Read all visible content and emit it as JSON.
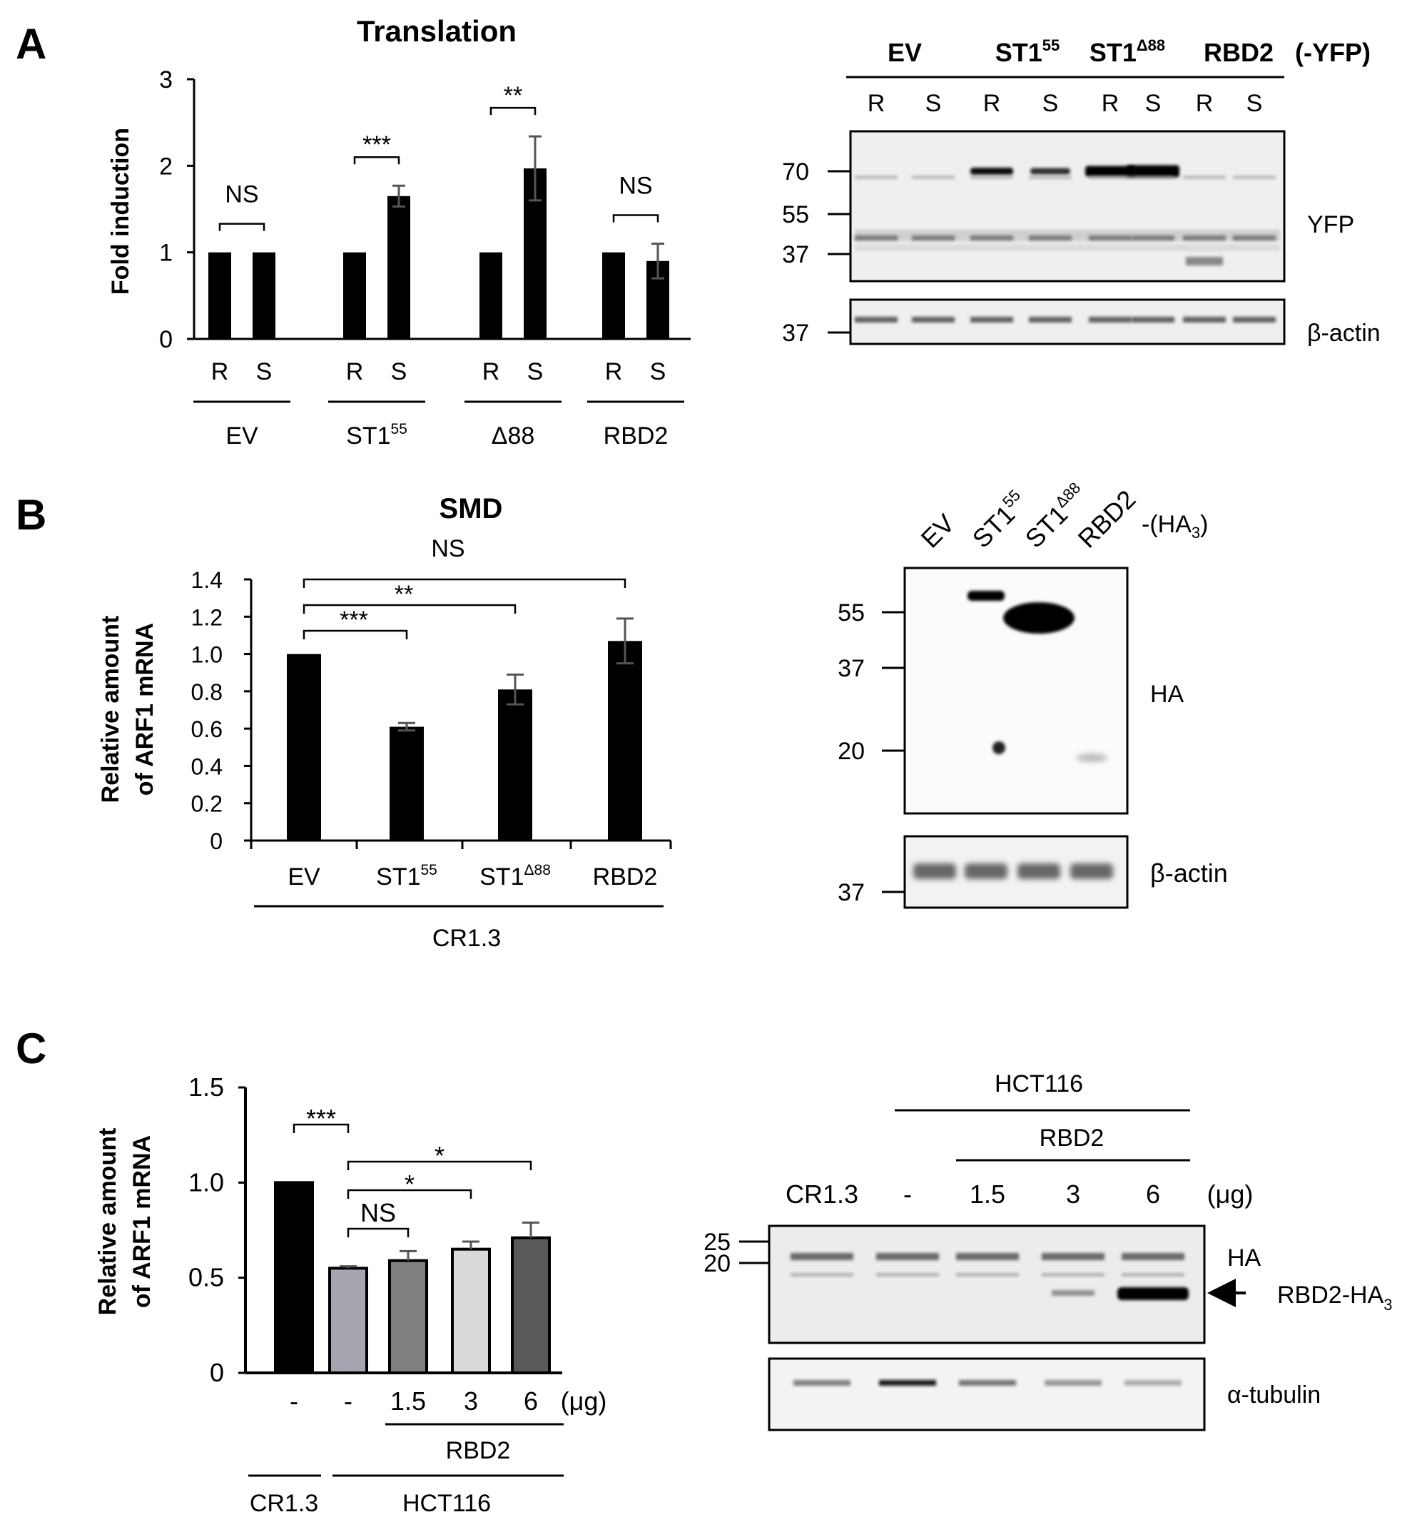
{
  "panels": {
    "A": {
      "letter": "A",
      "chart_data": {
        "type": "bar",
        "title": "Translation",
        "ylabel": "Fold induction",
        "ylim": [
          0,
          3
        ],
        "yticks": [
          "0",
          "1",
          "2",
          "3"
        ],
        "groups": [
          {
            "name": "EV",
            "sup": "",
            "bars": [
              {
                "label": "R",
                "value": 1.0,
                "err": 0
              },
              {
                "label": "S",
                "value": 1.0,
                "err": 0
              }
            ],
            "sig": "NS"
          },
          {
            "name": "ST1",
            "sup": "55",
            "bars": [
              {
                "label": "R",
                "value": 1.0,
                "err": 0
              },
              {
                "label": "S",
                "value": 1.65,
                "err": 0.12
              }
            ],
            "sig": "***"
          },
          {
            "name": "Δ88",
            "sup": "",
            "bars": [
              {
                "label": "R",
                "value": 1.0,
                "err": 0
              },
              {
                "label": "S",
                "value": 1.97,
                "err": 0.37
              }
            ],
            "sig": "**"
          },
          {
            "name": "RBD2",
            "sup": "",
            "bars": [
              {
                "label": "R",
                "value": 1.0,
                "err": 0
              },
              {
                "label": "S",
                "value": 0.9,
                "err": 0.2
              }
            ],
            "sig": "NS"
          }
        ]
      },
      "blot": {
        "headers": [
          {
            "name": "EV",
            "sup": ""
          },
          {
            "name": "ST1",
            "sup": "55"
          },
          {
            "name": "ST1",
            "sup": "Δ88"
          },
          {
            "name": "RBD2",
            "sup": ""
          }
        ],
        "suffix": "(-YFP)",
        "lanes": [
          "R",
          "S",
          "R",
          "S",
          "R",
          "S",
          "R",
          "S"
        ],
        "markers_main": [
          "70",
          "55",
          "37"
        ],
        "marker_actin": "37",
        "label_main": "YFP",
        "label_actin": "β-actin"
      }
    },
    "B": {
      "letter": "B",
      "chart_data": {
        "type": "bar",
        "title": "SMD",
        "ylabel_line1": "Relative amount",
        "ylabel_line2": "of ARF1 mRNA",
        "ylim": [
          0,
          1.4
        ],
        "yticks": [
          "0",
          "0.2",
          "0.4",
          "0.6",
          "0.8",
          "1.0",
          "1.2",
          "1.4"
        ],
        "bars": [
          {
            "name": "EV",
            "sup": "",
            "value": 1.0,
            "err": 0
          },
          {
            "name": "ST1",
            "sup": "55",
            "value": 0.61,
            "err": 0.02
          },
          {
            "name": "ST1",
            "sup": "Δ88",
            "value": 0.81,
            "err": 0.08
          },
          {
            "name": "RBD2",
            "sup": "",
            "value": 1.07,
            "err": 0.12
          }
        ],
        "comparisons": [
          {
            "from": 0,
            "to": 1,
            "label": "***"
          },
          {
            "from": 0,
            "to": 2,
            "label": "**"
          },
          {
            "from": 0,
            "to": 3,
            "label": "NS"
          }
        ],
        "group_label": "CR1.3"
      },
      "blot": {
        "lanes": [
          {
            "name": "EV",
            "sup": ""
          },
          {
            "name": "ST1",
            "sup": "55"
          },
          {
            "name": "ST1",
            "sup": "Δ88"
          },
          {
            "name": "RBD2",
            "sup": ""
          }
        ],
        "suffix_main": "-(HA",
        "suffix_sub": "3",
        "suffix_end": ")",
        "markers_main": [
          "55",
          "37",
          "20"
        ],
        "marker_actin": "37",
        "label_main": "HA",
        "label_actin": "β-actin"
      }
    },
    "C": {
      "letter": "C",
      "chart_data": {
        "type": "bar",
        "ylabel_line1": "Relative amount",
        "ylabel_line2": "of ARF1 mRNA",
        "ylim": [
          0,
          1.5
        ],
        "yticks": [
          "0",
          "0.5",
          "1.0",
          "1.5"
        ],
        "bars": [
          {
            "label": "-",
            "value": 1.0,
            "err": 0,
            "color": "#000000"
          },
          {
            "label": "-",
            "value": 0.55,
            "err": 0.01,
            "color": "#a6a6b0"
          },
          {
            "label": "1.5",
            "value": 0.59,
            "err": 0.05,
            "color": "#7f7f7f"
          },
          {
            "label": "3",
            "value": 0.65,
            "err": 0.04,
            "color": "#d9d9d9"
          },
          {
            "label": "6",
            "value": 0.71,
            "err": 0.08,
            "color": "#595959"
          }
        ],
        "unit": "(μg)",
        "comparisons": [
          {
            "from": 0,
            "to": 1,
            "label": "***"
          },
          {
            "from": 1,
            "to": 2,
            "label": "NS"
          },
          {
            "from": 1,
            "to": 3,
            "label": "*"
          },
          {
            "from": 1,
            "to": 4,
            "label": "*"
          }
        ],
        "treatment_label": "RBD2",
        "cell_labels": [
          "CR1.3",
          "HCT116"
        ]
      },
      "blot": {
        "header_cell": "HCT116",
        "header_treatment": "RBD2",
        "lanes": [
          "CR1.3",
          "-",
          "1.5",
          "3",
          "6"
        ],
        "unit": "(μg)",
        "markers_main": [
          "25",
          "20"
        ],
        "label_main": "HA",
        "arrow_label_main": "RBD2-HA",
        "arrow_label_sub": "3",
        "label_tubulin": "α-tubulin"
      }
    }
  }
}
